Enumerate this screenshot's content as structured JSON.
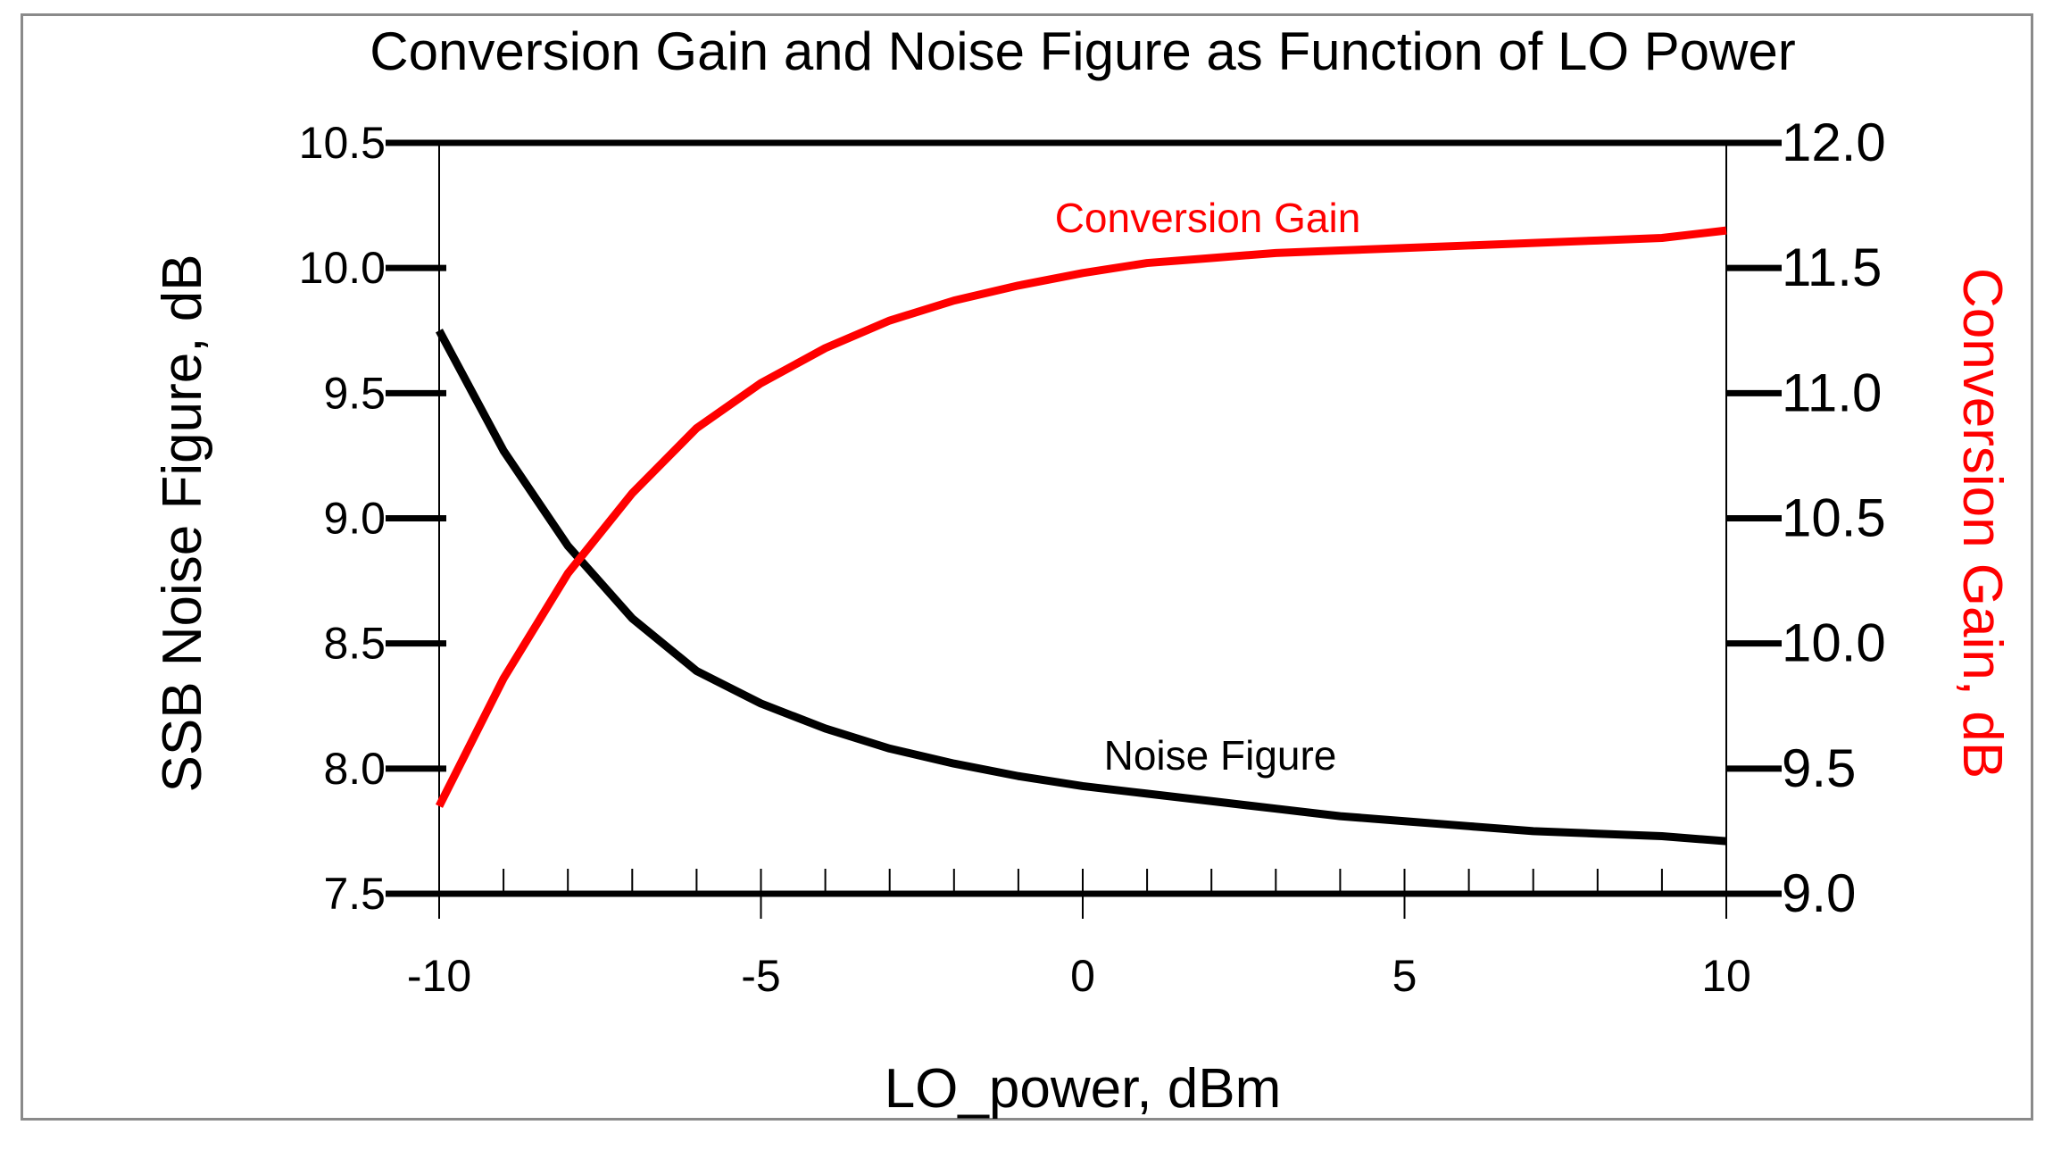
{
  "chart_data": {
    "type": "line",
    "title": "Conversion Gain and Noise Figure as Function of LO Power",
    "xlabel": "LO_power, dBm",
    "ylabel_left": "SSB Noise Figure, dB",
    "ylabel_right": "Conversion Gain, dB",
    "xlim": [
      -10,
      10
    ],
    "ylim_left": [
      7.5,
      10.5
    ],
    "ylim_right": [
      9.0,
      12.0
    ],
    "x_ticks": [
      "-10",
      "-5",
      "0",
      "5",
      "10"
    ],
    "y_left_ticks": [
      "7.5",
      "8.0",
      "8.5",
      "9.0",
      "9.5",
      "10.0",
      "10.5"
    ],
    "y_right_ticks": [
      "9.0",
      "9.5",
      "10.0",
      "10.5",
      "11.0",
      "11.5",
      "12.0"
    ],
    "grid": false,
    "colors": {
      "noise": "#000000",
      "gain": "#ff0000",
      "frame": "#8a8a8a"
    },
    "x": [
      -10,
      -9,
      -8,
      -7,
      -6,
      -5,
      -4,
      -3,
      -2,
      -1,
      0,
      1,
      2,
      3,
      4,
      5,
      6,
      7,
      8,
      9,
      10
    ],
    "series": [
      {
        "name": "Noise Figure",
        "axis": "left",
        "annotation": "Noise Figure",
        "values": [
          9.75,
          9.27,
          8.89,
          8.6,
          8.39,
          8.26,
          8.16,
          8.08,
          8.02,
          7.97,
          7.93,
          7.9,
          7.87,
          7.84,
          7.81,
          7.79,
          7.77,
          7.75,
          7.74,
          7.73,
          7.71
        ]
      },
      {
        "name": "Conversion Gain",
        "axis": "right",
        "annotation": "Conversion Gain",
        "values": [
          9.35,
          9.86,
          10.28,
          10.6,
          10.86,
          11.04,
          11.18,
          11.29,
          11.37,
          11.43,
          11.48,
          11.52,
          11.54,
          11.56,
          11.57,
          11.58,
          11.59,
          11.6,
          11.61,
          11.62,
          11.65
        ]
      }
    ]
  }
}
